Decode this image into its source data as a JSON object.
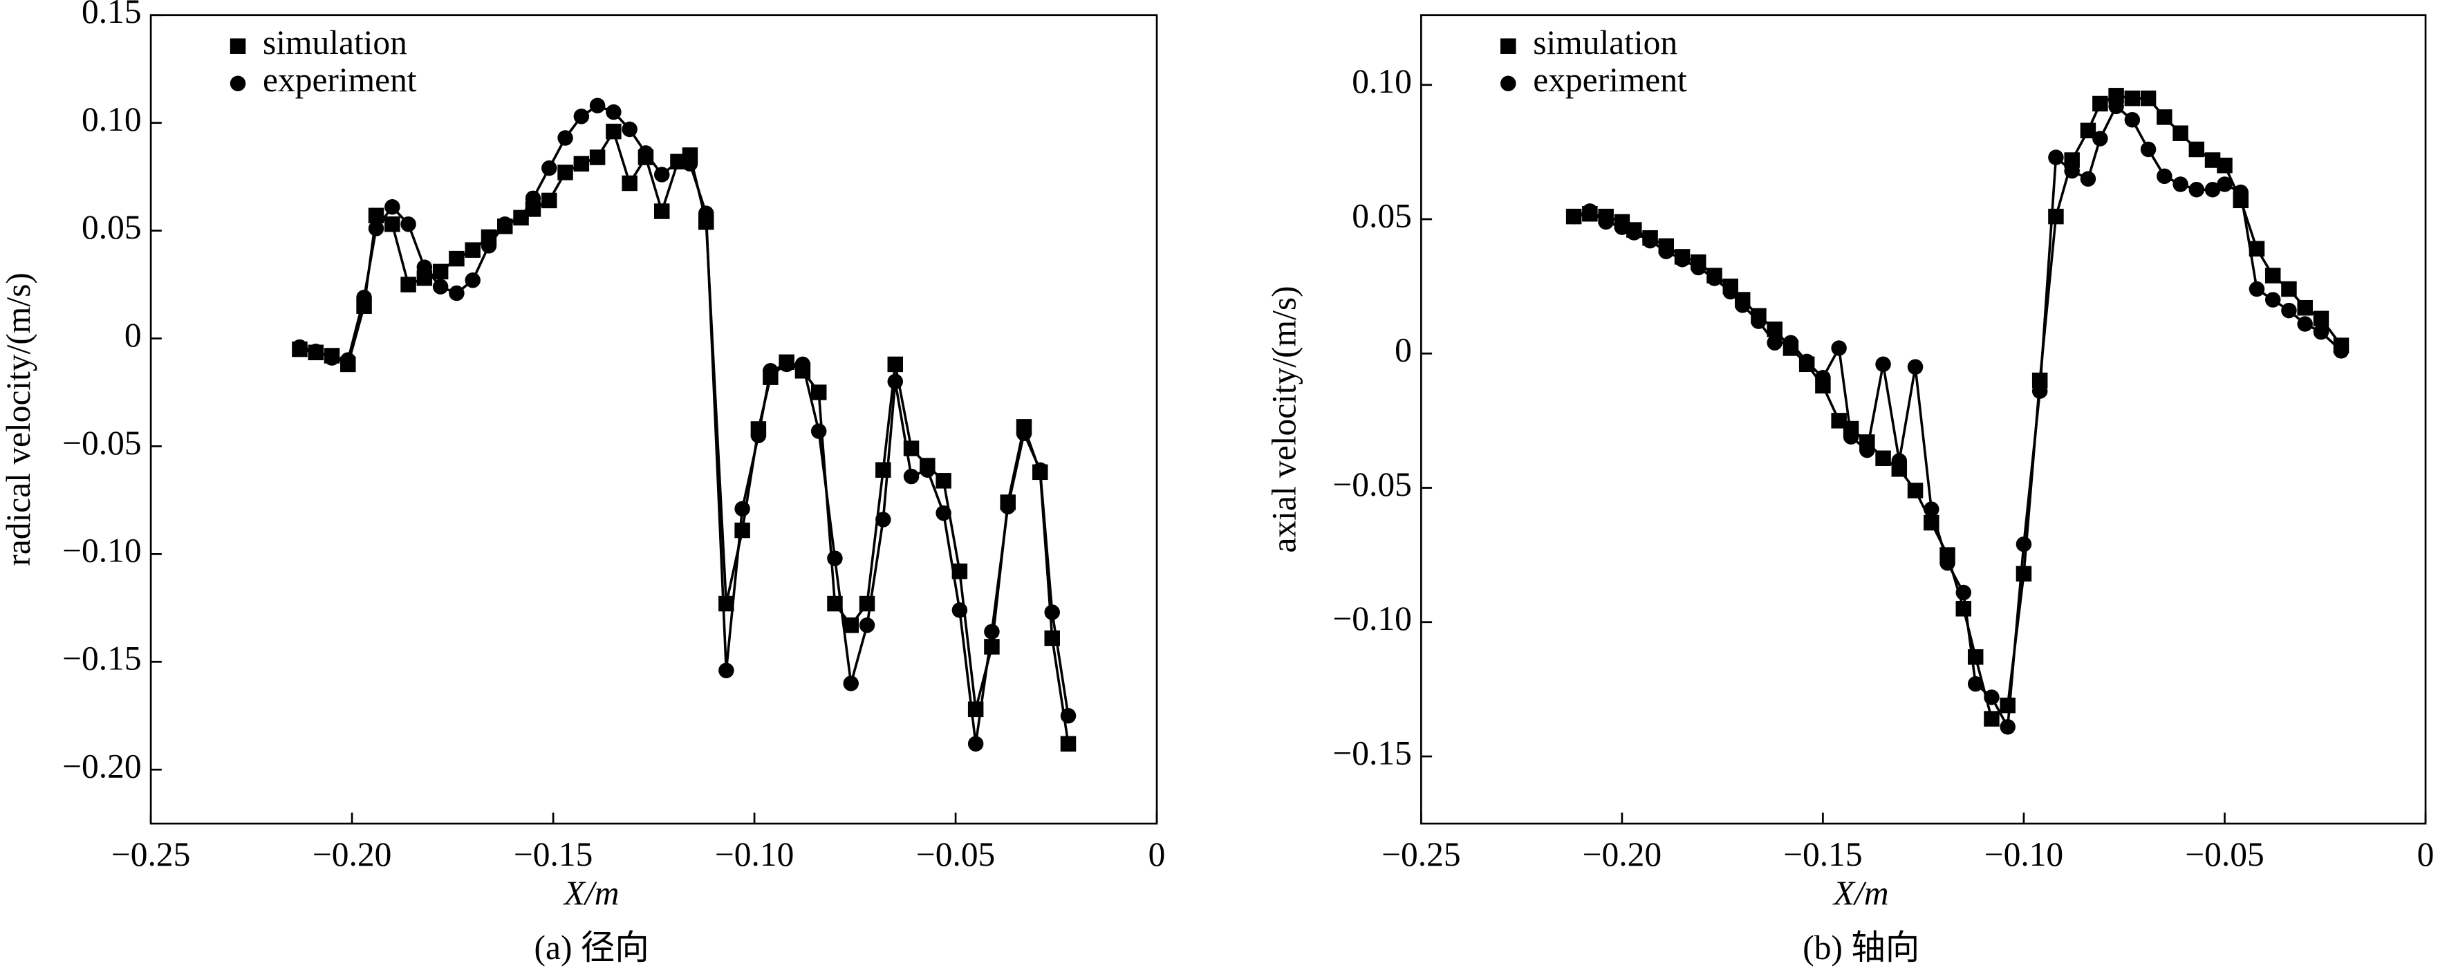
{
  "chart_data": [
    {
      "type": "line",
      "ylabel": "radical velocity/(m/s)",
      "xlabel": "X/m",
      "caption": "(a) 径向",
      "xlim": [
        -0.25,
        0
      ],
      "ylim": [
        -0.225,
        0.15
      ],
      "xticks": [
        {
          "value": -0.25,
          "label": "−0.25"
        },
        {
          "value": -0.2,
          "label": "−0.20"
        },
        {
          "value": -0.15,
          "label": "−0.15"
        },
        {
          "value": -0.1,
          "label": "−0.10"
        },
        {
          "value": -0.05,
          "label": "−0.05"
        },
        0
      ],
      "yticks": [
        0.15,
        {
          "value": 0.1,
          "label": "0.10"
        },
        0.05,
        0,
        {
          "value": -0.05,
          "label": "−0.05"
        },
        {
          "value": -0.1,
          "label": "−0.10"
        },
        {
          "value": -0.15,
          "label": "−0.15"
        },
        {
          "value": -0.2,
          "label": "−0.20"
        }
      ],
      "legend": "upper left",
      "x": [
        -0.213,
        -0.209,
        -0.205,
        -0.201,
        -0.197,
        -0.194,
        -0.19,
        -0.186,
        -0.182,
        -0.178,
        -0.174,
        -0.17,
        -0.166,
        -0.162,
        -0.158,
        -0.155,
        -0.151,
        -0.147,
        -0.143,
        -0.139,
        -0.135,
        -0.131,
        -0.127,
        -0.123,
        -0.119,
        -0.116,
        -0.112,
        -0.107,
        -0.103,
        -0.099,
        -0.096,
        -0.092,
        -0.088,
        -0.084,
        -0.08,
        -0.076,
        -0.072,
        -0.068,
        -0.065,
        -0.061,
        -0.057,
        -0.053,
        -0.049,
        -0.045,
        -0.041,
        -0.037,
        -0.033,
        -0.029,
        -0.026,
        -0.022
      ],
      "series": [
        {
          "name": "simulation",
          "color": "#000000",
          "marker": "square",
          "values": [
            -0.005,
            -0.0065,
            -0.008,
            -0.012,
            0.015,
            0.057,
            0.053,
            0.025,
            0.028,
            0.031,
            0.037,
            0.041,
            0.047,
            0.052,
            0.056,
            0.06,
            0.064,
            0.077,
            0.081,
            0.084,
            0.096,
            0.072,
            0.084,
            0.059,
            0.082,
            0.085,
            0.054,
            -0.123,
            -0.089,
            -0.042,
            -0.018,
            -0.011,
            -0.015,
            -0.025,
            -0.123,
            -0.133,
            -0.123,
            -0.061,
            -0.012,
            -0.051,
            -0.059,
            -0.066,
            -0.108,
            -0.172,
            -0.143,
            -0.076,
            -0.041,
            -0.062,
            -0.139,
            -0.188
          ]
        },
        {
          "name": "experiment",
          "color": "#000000",
          "marker": "circle",
          "values": [
            -0.004,
            -0.006,
            -0.009,
            -0.01,
            0.019,
            0.051,
            0.061,
            0.053,
            0.033,
            0.024,
            0.021,
            0.027,
            0.043,
            0.053,
            0.056,
            0.065,
            0.079,
            0.093,
            0.103,
            0.108,
            0.105,
            0.097,
            0.086,
            0.076,
            0.082,
            0.081,
            0.058,
            -0.154,
            -0.079,
            -0.045,
            -0.015,
            -0.012,
            -0.012,
            -0.043,
            -0.102,
            -0.16,
            -0.133,
            -0.084,
            -0.02,
            -0.064,
            -0.061,
            -0.081,
            -0.126,
            -0.188,
            -0.136,
            -0.078,
            -0.044,
            -0.061,
            -0.127,
            -0.175
          ]
        }
      ]
    },
    {
      "type": "line",
      "ylabel": "axial velocity/(m/s)",
      "xlabel": "X/m",
      "caption": "(b) 轴向",
      "xlim": [
        -0.25,
        0
      ],
      "ylim": [
        -0.175,
        0.126
      ],
      "xticks": [
        {
          "value": -0.25,
          "label": "−0.25"
        },
        {
          "value": -0.2,
          "label": "−0.20"
        },
        {
          "value": -0.15,
          "label": "−0.15"
        },
        {
          "value": -0.1,
          "label": "−0.10"
        },
        {
          "value": -0.05,
          "label": "−0.05"
        },
        0
      ],
      "yticks": [
        {
          "value": 0.1,
          "label": "0.10"
        },
        0.05,
        0,
        {
          "value": -0.05,
          "label": "−0.05"
        },
        {
          "value": -0.1,
          "label": "−0.10"
        },
        {
          "value": -0.15,
          "label": "−0.15"
        }
      ],
      "legend": "upper left",
      "x": [
        -0.212,
        -0.208,
        -0.204,
        -0.2,
        -0.197,
        -0.193,
        -0.189,
        -0.185,
        -0.181,
        -0.177,
        -0.173,
        -0.17,
        -0.166,
        -0.162,
        -0.158,
        -0.154,
        -0.15,
        -0.146,
        -0.143,
        -0.139,
        -0.135,
        -0.131,
        -0.127,
        -0.123,
        -0.119,
        -0.115,
        -0.112,
        -0.108,
        -0.104,
        -0.1,
        -0.096,
        -0.092,
        -0.088,
        -0.084,
        -0.081,
        -0.077,
        -0.073,
        -0.069,
        -0.065,
        -0.061,
        -0.057,
        -0.053,
        -0.05,
        -0.046,
        -0.042,
        -0.038,
        -0.034,
        -0.03,
        -0.026,
        -0.021
      ],
      "series": [
        {
          "name": "simulation",
          "color": "#000000",
          "marker": "square",
          "values": [
            0.051,
            0.052,
            0.051,
            0.049,
            0.046,
            0.043,
            0.04,
            0.036,
            0.034,
            0.029,
            0.025,
            0.02,
            0.014,
            0.009,
            0.002,
            -0.004,
            -0.012,
            -0.025,
            -0.028,
            -0.033,
            -0.039,
            -0.043,
            -0.051,
            -0.063,
            -0.075,
            -0.095,
            -0.113,
            -0.136,
            -0.131,
            -0.082,
            -0.01,
            0.051,
            0.072,
            0.083,
            0.093,
            0.096,
            0.095,
            0.095,
            0.088,
            0.082,
            0.076,
            0.072,
            0.07,
            0.057,
            0.039,
            0.029,
            0.024,
            0.017,
            0.013,
            0.003
          ]
        },
        {
          "name": "experiment",
          "color": "#000000",
          "marker": "circle",
          "values": [
            0.051,
            0.053,
            0.049,
            0.047,
            0.045,
            0.042,
            0.038,
            0.035,
            0.032,
            0.028,
            0.023,
            0.018,
            0.012,
            0.004,
            0.004,
            -0.003,
            -0.009,
            0.002,
            -0.031,
            -0.036,
            -0.004,
            -0.04,
            -0.005,
            -0.058,
            -0.078,
            -0.089,
            -0.123,
            -0.128,
            -0.139,
            -0.071,
            -0.014,
            0.073,
            0.068,
            0.065,
            0.08,
            0.092,
            0.087,
            0.076,
            0.066,
            0.063,
            0.061,
            0.061,
            0.063,
            0.06,
            0.024,
            0.02,
            0.016,
            0.011,
            0.008,
            0.001
          ]
        }
      ]
    }
  ]
}
